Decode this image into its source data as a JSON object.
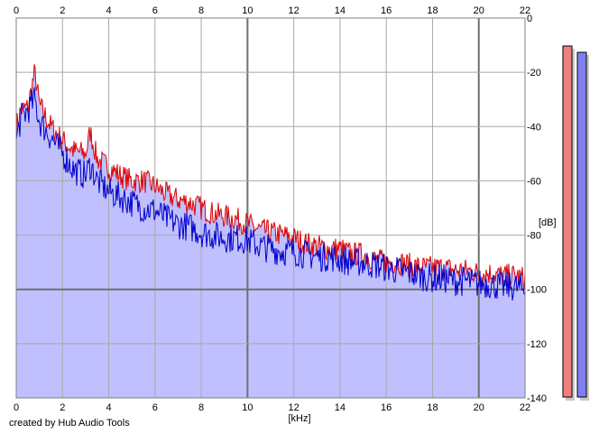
{
  "chart_data": {
    "type": "area",
    "xlabel": "[kHz]",
    "ylabel": "[dB]",
    "xlim": [
      0,
      22
    ],
    "ylim": [
      -140,
      0
    ],
    "x_ticks": [
      "0",
      "2",
      "4",
      "6",
      "8",
      "10",
      "12",
      "14",
      "16",
      "18",
      "20",
      "22"
    ],
    "y_ticks": [
      "0",
      "-20",
      "-40",
      "-60",
      "-80",
      "-100",
      "-120",
      "-140"
    ],
    "grid": true,
    "colors": {
      "series_red": "#dd0000",
      "series_blue": "#0000cc",
      "fill": "#c0c0ff",
      "meter_left": "#f08080",
      "meter_right": "#8080f0"
    },
    "series": [
      {
        "x": [
          0,
          0.2,
          0.5,
          0.8,
          1,
          1.5,
          2,
          2.5,
          3,
          3.2,
          3.5,
          4,
          4.5,
          5,
          5.5,
          6,
          6.5,
          7,
          7.5,
          8,
          8.5,
          9,
          9.5,
          10,
          10.5,
          11,
          11.5,
          12,
          12.5,
          13,
          13.5,
          14,
          14.5,
          15,
          15.5,
          16,
          16.5,
          17,
          17.5,
          18,
          18.5,
          19,
          19.5,
          20,
          20.5,
          21,
          21.5,
          22
        ],
        "values": [
          -40,
          -34,
          -33,
          -20,
          -32,
          -40,
          -45,
          -49,
          -50,
          -42,
          -52,
          -55,
          -58,
          -60,
          -60,
          -62,
          -65,
          -67,
          -68,
          -70,
          -72,
          -73,
          -74,
          -76,
          -78,
          -79,
          -80,
          -81,
          -83,
          -84,
          -85,
          -85,
          -87,
          -87,
          -89,
          -90,
          -90,
          -91,
          -92,
          -92,
          -92,
          -93,
          -93,
          -94,
          -94,
          -95,
          -95,
          -96
        ]
      },
      {
        "x": [
          0,
          0.2,
          0.5,
          0.8,
          1,
          1.5,
          2,
          2.5,
          3,
          3.2,
          3.5,
          4,
          4.5,
          5,
          5.5,
          6,
          6.5,
          7,
          7.5,
          8,
          8.5,
          9,
          9.5,
          10,
          10.5,
          11,
          11.5,
          12,
          12.5,
          13,
          13.5,
          14,
          14.5,
          15,
          15.5,
          16,
          16.5,
          17,
          17.5,
          18,
          18.5,
          19,
          19.5,
          20,
          20.5,
          21,
          21.5,
          22
        ],
        "values": [
          -45,
          -37,
          -34,
          -30,
          -38,
          -44,
          -50,
          -56,
          -58,
          -54,
          -60,
          -64,
          -66,
          -68,
          -70,
          -71,
          -74,
          -76,
          -77,
          -79,
          -80,
          -81,
          -81,
          -82,
          -84,
          -85,
          -86,
          -86,
          -87,
          -88,
          -88,
          -89,
          -90,
          -90,
          -91,
          -92,
          -93,
          -94,
          -95,
          -96,
          -96,
          -97,
          -97,
          -98,
          -98,
          -99,
          -99,
          -100
        ]
      }
    ],
    "meters": [
      {
        "value": -140
      },
      {
        "value": -140
      }
    ]
  },
  "footer": {
    "credit": "created by Hub Audio Tools"
  }
}
